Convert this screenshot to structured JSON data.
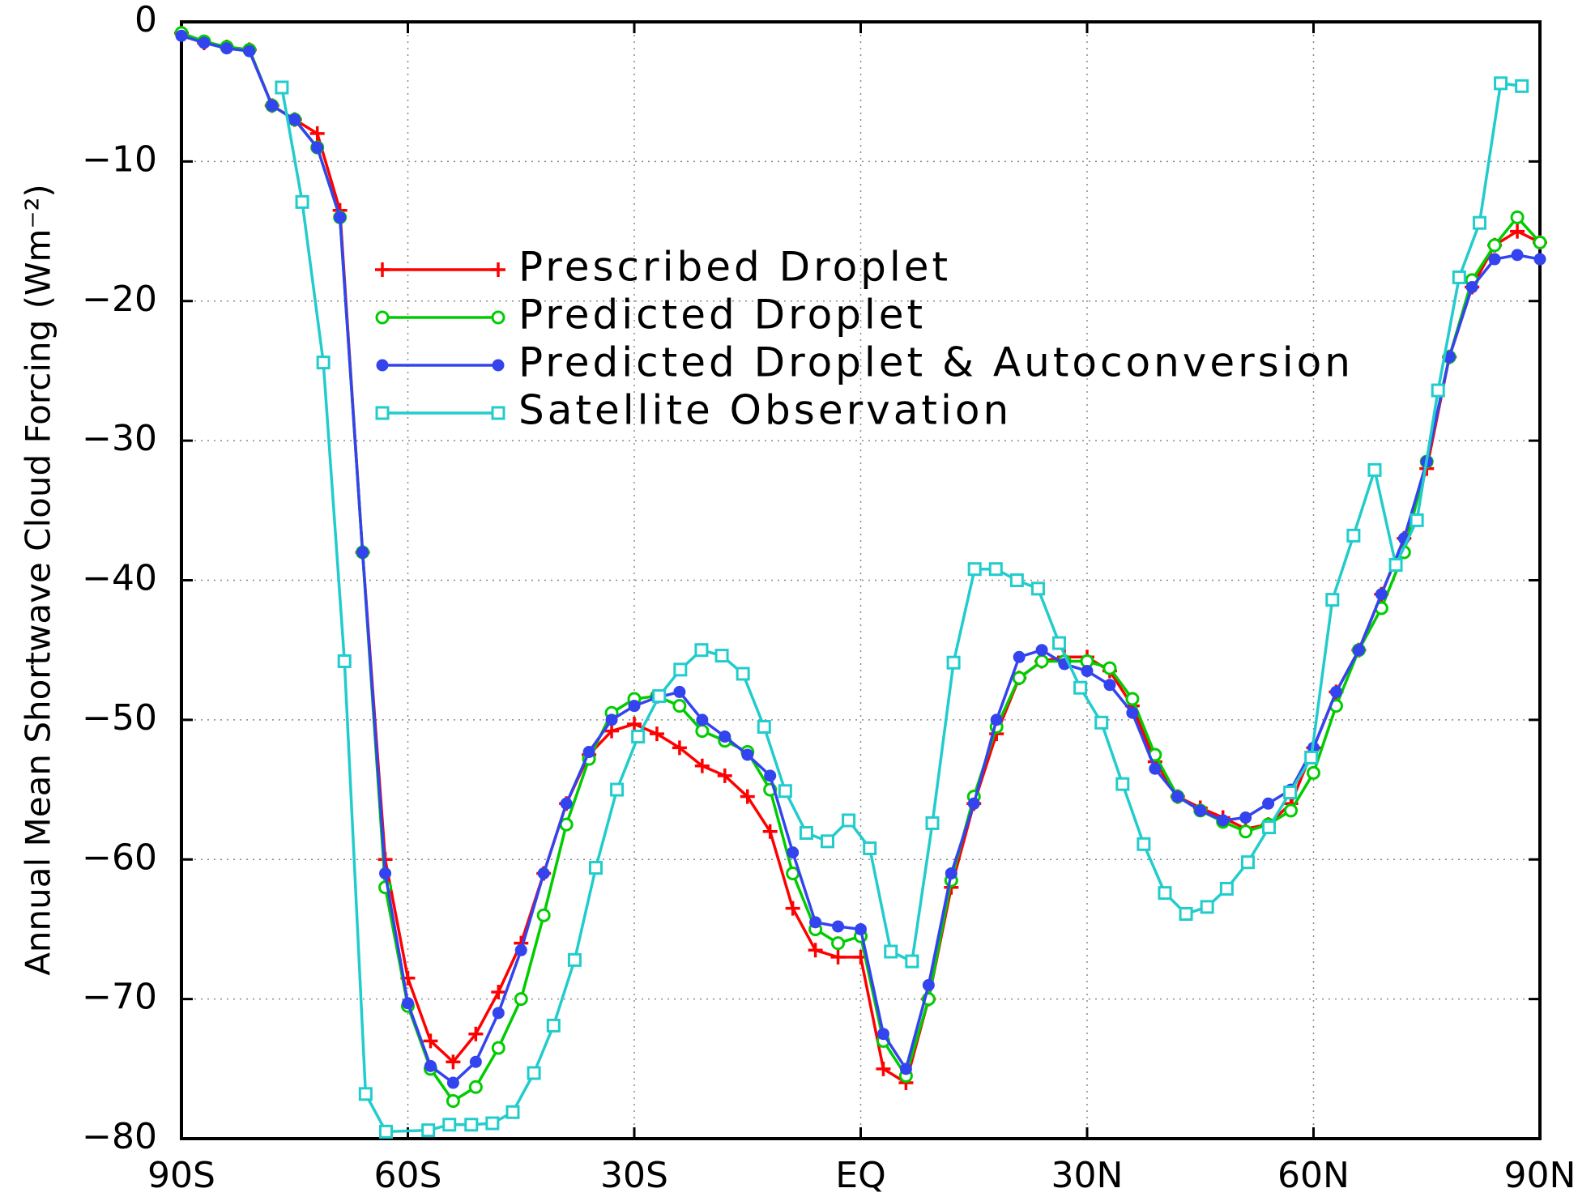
{
  "chart_data": {
    "type": "line",
    "ylabel": "Annual Mean Shortwave Cloud Forcing (Wm⁻²)",
    "xlim": [
      -90,
      90
    ],
    "ylim": [
      -80,
      0
    ],
    "xticks": [
      {
        "value": -90,
        "label": "90S"
      },
      {
        "value": -60,
        "label": "60S"
      },
      {
        "value": -30,
        "label": "30S"
      },
      {
        "value": 0,
        "label": "EQ"
      },
      {
        "value": 30,
        "label": "30N"
      },
      {
        "value": 60,
        "label": "60N"
      },
      {
        "value": 90,
        "label": "90N"
      }
    ],
    "yticks": [
      {
        "value": -80,
        "label": "−80"
      },
      {
        "value": -70,
        "label": "−70"
      },
      {
        "value": -60,
        "label": "−60"
      },
      {
        "value": -50,
        "label": "−50"
      },
      {
        "value": -40,
        "label": "−40"
      },
      {
        "value": -30,
        "label": "−30"
      },
      {
        "value": -20,
        "label": "−20"
      },
      {
        "value": -10,
        "label": "−10"
      },
      0
    ],
    "grid": true,
    "x": [
      -90,
      -87,
      -84,
      -81,
      -78,
      -75,
      -72,
      -69,
      -66,
      -63,
      -60,
      -57,
      -54,
      -51,
      -48,
      -45,
      -42,
      -39,
      -36,
      -33,
      -30,
      -27,
      -24,
      -21,
      -18,
      -15,
      -12,
      -9,
      -6,
      -3,
      0,
      3,
      6,
      9,
      12,
      15,
      18,
      21,
      24,
      27,
      30,
      33,
      36,
      39,
      42,
      45,
      48,
      51,
      54,
      57,
      60,
      63,
      66,
      69,
      72,
      75,
      78,
      81,
      84,
      87,
      90
    ],
    "series": [
      {
        "name": "Prescribed Droplet",
        "color": "#ff0000",
        "marker": "plus",
        "values": [
          -0.8,
          -1.5,
          -1.8,
          -2,
          -6,
          -7,
          -8,
          -13.5,
          -38,
          -60,
          -68.5,
          -73,
          -74.5,
          -72.5,
          -69.5,
          -66,
          -61,
          -56,
          -52.5,
          -50.8,
          -50.3,
          -51,
          -52,
          -53.3,
          -54,
          -55.5,
          -58,
          -63.5,
          -66.5,
          -67,
          -67,
          -75,
          -76,
          -70,
          -62,
          -56,
          -51,
          -47,
          -45.8,
          -45.5,
          -45.5,
          -46.5,
          -49,
          -53,
          -55.5,
          -56.3,
          -57,
          -57.8,
          -57.5,
          -56,
          -52,
          -48,
          -45,
          -41,
          -37,
          -32,
          -24,
          -19,
          -16,
          -15,
          -15.8
        ]
      },
      {
        "name": "Predicted Droplet",
        "color": "#00cc00",
        "marker": "open-circle",
        "values": [
          -0.8,
          -1.4,
          -1.8,
          -2,
          -6,
          -7,
          -9,
          -14,
          -38,
          -62,
          -70.5,
          -75,
          -77.3,
          -76.3,
          -73.5,
          -70,
          -64,
          -57.5,
          -52.8,
          -49.5,
          -48.5,
          -48.3,
          -49,
          -50.8,
          -51.5,
          -52.3,
          -55,
          -61,
          -65,
          -66,
          -65.5,
          -73,
          -75.5,
          -70,
          -61.5,
          -55.5,
          -50.5,
          -47,
          -45.8,
          -45.8,
          -45.8,
          -46.3,
          -48.5,
          -52.5,
          -55.5,
          -56.5,
          -57.3,
          -58,
          -57.5,
          -56.5,
          -53.8,
          -49,
          -45,
          -42,
          -38,
          -31.5,
          -24,
          -18.5,
          -16,
          -14,
          -15.8
        ]
      },
      {
        "name": "Predicted Droplet & Autoconversion",
        "color": "#3344ee",
        "marker": "dot",
        "values": [
          -1,
          -1.5,
          -1.9,
          -2.1,
          -6,
          -7,
          -9,
          -14,
          -38,
          -61,
          -70.3,
          -74.8,
          -76,
          -74.5,
          -71,
          -66.5,
          -61,
          -56,
          -52.3,
          -50,
          -49,
          -48.4,
          -48,
          -50,
          -51.2,
          -52.5,
          -54,
          -59.5,
          -64.5,
          -64.8,
          -65,
          -72.5,
          -75,
          -69,
          -61,
          -56,
          -50,
          -45.5,
          -45,
          -46,
          -46.5,
          -47.5,
          -49.5,
          -53.5,
          -55.5,
          -56.5,
          -57.2,
          -57,
          -56,
          -55,
          -52,
          -48,
          -45,
          -41,
          -37,
          -31.5,
          -24,
          -19,
          -17,
          -16.7,
          -17
        ]
      },
      {
        "name": "Satellite Observation",
        "color": "#22cccc",
        "marker": "open-square",
        "x": [
          -76.7,
          -74,
          -71.2,
          -68.4,
          -65.6,
          -62.9,
          -57.3,
          -54.5,
          -51.6,
          -48.8,
          -46.1,
          -43.3,
          -40.7,
          -37.9,
          -35.1,
          -32.3,
          -29.5,
          -26.7,
          -23.9,
          -21.1,
          -18.4,
          -15.6,
          -12.8,
          -10,
          -7.2,
          -4.4,
          -1.6,
          1.2,
          4,
          6.8,
          9.5,
          12.3,
          15.1,
          17.9,
          20.7,
          23.5,
          26.3,
          29.1,
          31.9,
          34.7,
          37.5,
          40.3,
          43.1,
          45.9,
          48.5,
          51.3,
          54.1,
          56.9,
          59.7,
          62.5,
          65.3,
          68.1,
          70.9,
          73.7,
          76.5,
          79.3,
          82,
          84.8,
          87.6
        ],
        "values": [
          -4.7,
          -12.9,
          -24.4,
          -45.8,
          -76.8,
          -79.5,
          -79.4,
          -79,
          -79,
          -78.9,
          -78.1,
          -75.3,
          -71.9,
          -67.2,
          -60.6,
          -55,
          -51.2,
          -48.3,
          -46.4,
          -45,
          -45.4,
          -46.7,
          -50.5,
          -55.1,
          -58.1,
          -58.7,
          -57.2,
          -59.2,
          -66.6,
          -67.3,
          -57.4,
          -45.9,
          -39.2,
          -39.2,
          -40,
          -40.6,
          -44.5,
          -47.7,
          -50.2,
          -54.6,
          -58.9,
          -62.4,
          -63.9,
          -63.4,
          -62.1,
          -60.2,
          -57.7,
          -55.2,
          -52.7,
          -41.4,
          -36.8,
          -32.1,
          -38.9,
          -35.7,
          -26.4,
          -18.3,
          -14.4,
          -4.4,
          -4.6
        ]
      }
    ]
  }
}
